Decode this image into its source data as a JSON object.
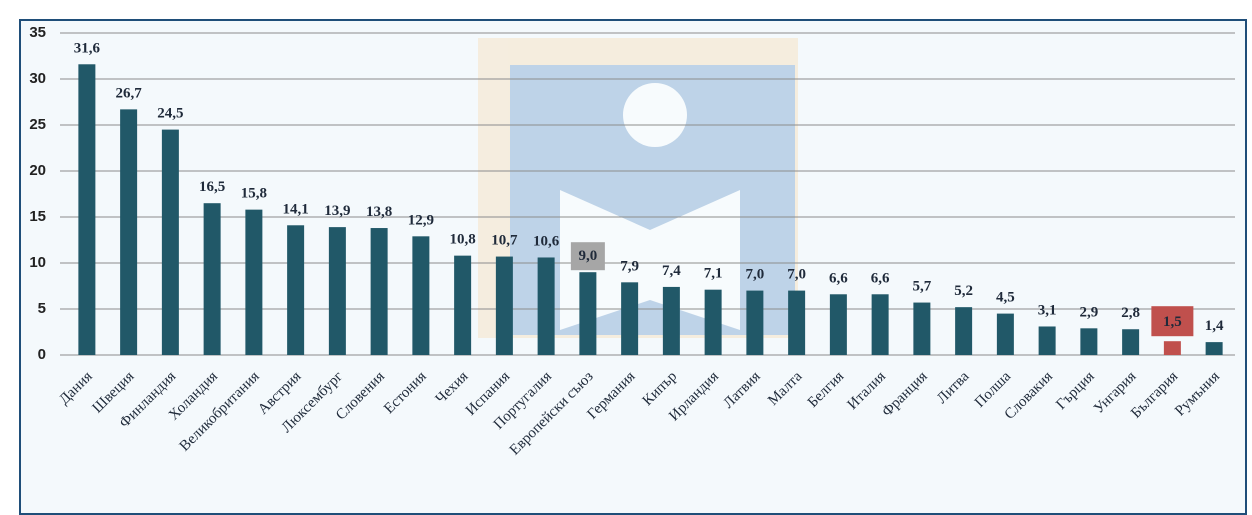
{
  "chart_data": {
    "type": "bar",
    "categories": [
      "Дания",
      "Швеция",
      "Финландия",
      "Холандия",
      "Великобритания",
      "Австрия",
      "Люксембург",
      "Словения",
      "Естония",
      "Чехия",
      "Испания",
      "Португалия",
      "Европейски съюз",
      "Германия",
      "Кипър",
      "Ирландия",
      "Латвия",
      "Малта",
      "Белгия",
      "Италия",
      "Франция",
      "Литва",
      "Полша",
      "Словакия",
      "Гърция",
      "Унгария",
      "България",
      "Румъния"
    ],
    "values": [
      31.6,
      26.7,
      24.5,
      16.5,
      15.8,
      14.1,
      13.9,
      13.8,
      12.9,
      10.8,
      10.7,
      10.6,
      9.0,
      7.9,
      7.4,
      7.1,
      7.0,
      7.0,
      6.6,
      6.6,
      5.7,
      5.2,
      4.5,
      3.1,
      2.9,
      2.8,
      1.5,
      1.4
    ],
    "value_labels": [
      "31,6",
      "26,7",
      "24,5",
      "16,5",
      "15,8",
      "14,1",
      "13,9",
      "13,8",
      "12,9",
      "10,8",
      "10,7",
      "10,6",
      "9,0",
      "7,9",
      "7,4",
      "7,1",
      "7,0",
      "7,0",
      "6,6",
      "6,6",
      "5,7",
      "5,2",
      "4,5",
      "3,1",
      "2,9",
      "2,8",
      "1,5",
      "1,4"
    ],
    "colors": [
      "#215868",
      "#215868",
      "#215868",
      "#215868",
      "#215868",
      "#215868",
      "#215868",
      "#215868",
      "#215868",
      "#215868",
      "#215868",
      "#215868",
      "#215868",
      "#215868",
      "#215868",
      "#215868",
      "#215868",
      "#215868",
      "#215868",
      "#215868",
      "#215868",
      "#215868",
      "#215868",
      "#215868",
      "#215868",
      "#215868",
      "#c0504d",
      "#215868"
    ],
    "label_backgrounds": [
      null,
      null,
      null,
      null,
      null,
      null,
      null,
      null,
      null,
      null,
      null,
      null,
      "#a6a6a6",
      null,
      null,
      null,
      null,
      null,
      null,
      null,
      null,
      null,
      null,
      null,
      null,
      null,
      "#c0504d",
      null
    ],
    "ylim": [
      0,
      35
    ],
    "yticks": [
      0,
      5,
      10,
      15,
      20,
      25,
      30,
      35
    ],
    "grid": true
  }
}
